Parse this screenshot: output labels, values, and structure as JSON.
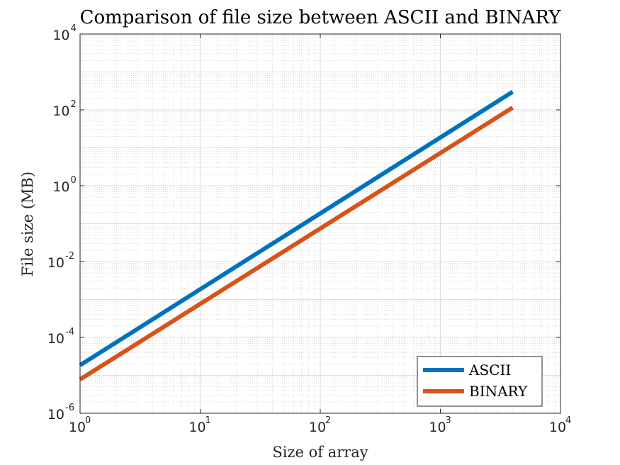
{
  "chart_data": {
    "type": "line",
    "title": "Comparison of file size between ASCII and BINARY",
    "xlabel": "Size of array",
    "ylabel": "File size (MB)",
    "xscale": "log",
    "yscale": "log",
    "xlim": [
      1,
      10000
    ],
    "ylim": [
      1e-06,
      10000
    ],
    "xticks": [
      {
        "value": 1,
        "base": "10",
        "exp": "0"
      },
      {
        "value": 10,
        "base": "10",
        "exp": "1"
      },
      {
        "value": 100,
        "base": "10",
        "exp": "2"
      },
      {
        "value": 1000,
        "base": "10",
        "exp": "3"
      },
      {
        "value": 10000,
        "base": "10",
        "exp": "4"
      }
    ],
    "yticks": [
      {
        "value": 1e-06,
        "base": "10",
        "exp": "-6"
      },
      {
        "value": 0.0001,
        "base": "10",
        "exp": "-4"
      },
      {
        "value": 0.01,
        "base": "10",
        "exp": "-2"
      },
      {
        "value": 1,
        "base": "10",
        "exp": "0"
      },
      {
        "value": 100,
        "base": "10",
        "exp": "2"
      },
      {
        "value": 10000,
        "base": "10",
        "exp": "4"
      }
    ],
    "grid": true,
    "minor_grid": true,
    "legend_position": "bottom-right",
    "series": [
      {
        "name": "ASCII",
        "color": "#0072BD",
        "x": [
          1,
          4000
        ],
        "y": [
          1.85e-05,
          300
        ]
      },
      {
        "name": "BINARY",
        "color": "#D95319",
        "x": [
          1,
          4000
        ],
        "y": [
          7.8e-06,
          115
        ]
      }
    ]
  }
}
